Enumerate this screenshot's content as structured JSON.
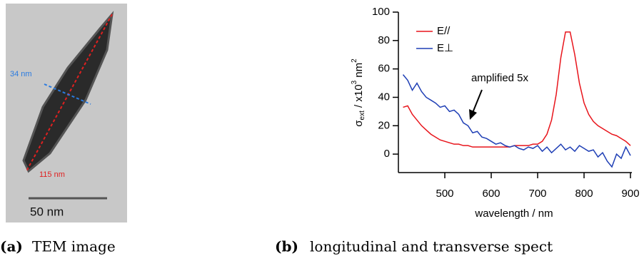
{
  "figure": {
    "panel_a": {
      "width_label": "34 nm",
      "length_label": "115 nm",
      "scale_label": "50 nm"
    },
    "captions": [
      {
        "label": "(a)",
        "text": "TEM image"
      },
      {
        "label": "(b)",
        "text": "longitudinal and transverse spect"
      }
    ]
  },
  "chart_data": {
    "type": "line",
    "ylabel": {
      "symbol": "σ",
      "subscript": "ext",
      "text": " / x10",
      "exp1": "3",
      "unit": " nm",
      "exp2": "2"
    },
    "xlabel": "wavelength / nm",
    "annotation": "amplified 5x",
    "x": [
      410,
      420,
      430,
      440,
      450,
      460,
      470,
      480,
      490,
      500,
      510,
      520,
      530,
      540,
      550,
      560,
      570,
      580,
      590,
      600,
      610,
      620,
      630,
      640,
      650,
      660,
      670,
      680,
      690,
      700,
      710,
      720,
      730,
      740,
      750,
      760,
      770,
      780,
      790,
      800,
      810,
      820,
      830,
      840,
      850,
      860,
      870,
      880,
      890,
      900
    ],
    "series": [
      {
        "name": "E//",
        "color": "#e8141b",
        "values": [
          33,
          34,
          28,
          24,
          20,
          17,
          14,
          12,
          10,
          9,
          8,
          7,
          7,
          6,
          6,
          5,
          5,
          5,
          5,
          5,
          5,
          5,
          5,
          5,
          6,
          6,
          6,
          6,
          7,
          7,
          9,
          14,
          24,
          42,
          68,
          86,
          86,
          70,
          50,
          36,
          28,
          23,
          20,
          18,
          16,
          14,
          13,
          11,
          9,
          6
        ]
      },
      {
        "name": "E⊥",
        "color": "#1f3fb5",
        "values": [
          56,
          52,
          45,
          50,
          44,
          40,
          38,
          36,
          33,
          34,
          30,
          31,
          28,
          22,
          20,
          15,
          16,
          12,
          11,
          9,
          7,
          8,
          6,
          5,
          6,
          4,
          3,
          5,
          4,
          6,
          2,
          5,
          1,
          4,
          7,
          3,
          5,
          2,
          6,
          4,
          2,
          3,
          -2,
          1,
          -5,
          -9,
          0,
          -3,
          5,
          -1
        ]
      }
    ],
    "xlim": [
      400,
      903
    ],
    "ylim": [
      -13,
      100
    ],
    "xticks": [
      500,
      600,
      700,
      800,
      900
    ],
    "yticks": [
      0,
      20,
      40,
      60,
      80,
      100
    ]
  }
}
